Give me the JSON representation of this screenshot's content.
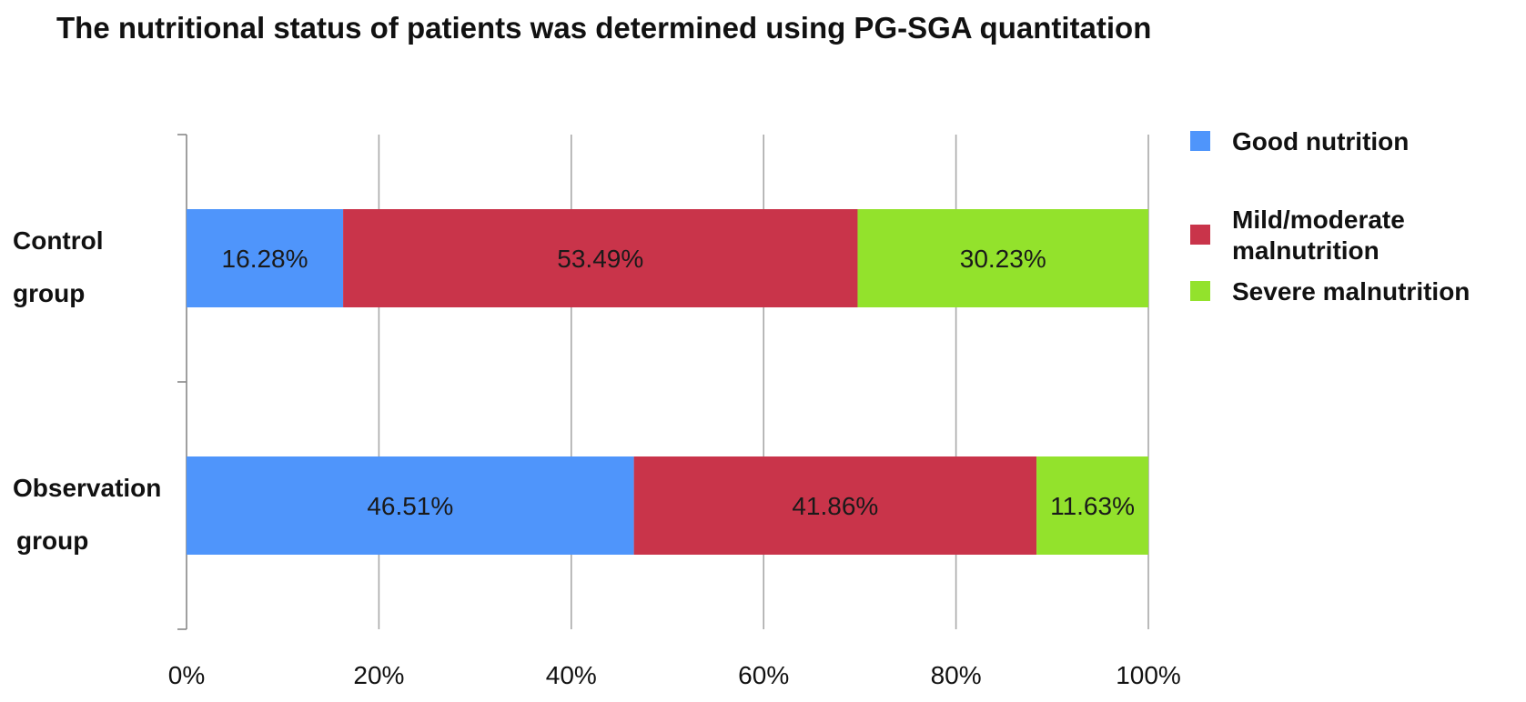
{
  "chart_data": {
    "type": "bar",
    "orientation": "horizontal",
    "stacked": true,
    "percent_stacked": true,
    "title": "The nutritional status of patients was determined using PG-SGA quantitation",
    "categories": [
      [
        "Control",
        "group"
      ],
      [
        "Observation",
        "group"
      ]
    ],
    "series": [
      {
        "name": "Good nutrition",
        "color": "#4f95fb",
        "values": [
          16.28,
          46.51
        ],
        "labels": [
          "16.28%",
          "46.51%"
        ]
      },
      {
        "name": "Mild/moderate malnutrition",
        "legend_lines": [
          "Mild/moderate",
          "malnutrition"
        ],
        "color": "#c9344a",
        "values": [
          53.49,
          41.86
        ],
        "labels": [
          "53.49%",
          "41.86%"
        ]
      },
      {
        "name": "Severe malnutrition",
        "color": "#93e22c",
        "values": [
          30.23,
          11.63
        ],
        "labels": [
          "30.23%",
          "11.63%"
        ]
      }
    ],
    "xlim": [
      0,
      100
    ],
    "xticks": [
      "0%",
      "20%",
      "40%",
      "60%",
      "80%",
      "100%"
    ],
    "grid": true,
    "legend_position": "right"
  }
}
